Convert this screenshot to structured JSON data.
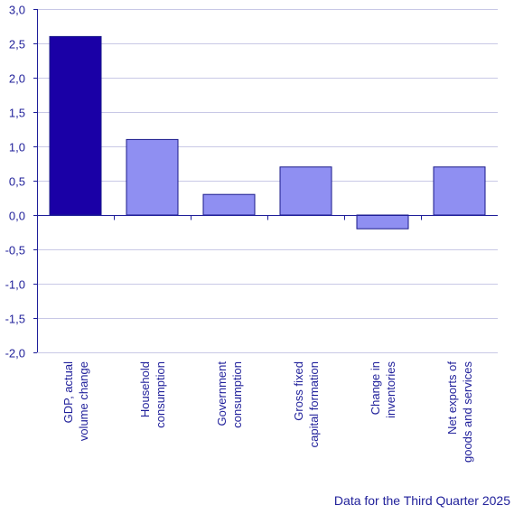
{
  "chart_data": {
    "type": "bar",
    "categories": [
      [
        "GDP, actual",
        "volume change"
      ],
      [
        "Household",
        "consumption"
      ],
      [
        "Government",
        "consumption"
      ],
      [
        "Gross fixed",
        "capital formation"
      ],
      [
        "Change in",
        "inventories"
      ],
      [
        "Net exports of",
        "goods and services"
      ]
    ],
    "values": [
      2.6,
      1.1,
      0.3,
      0.7,
      -0.2,
      0.7
    ],
    "ylim": [
      -2.0,
      3.0
    ],
    "yticks": [
      "3,0",
      "2,5",
      "2,0",
      "1,5",
      "1,0",
      "0,5",
      "0,0",
      "-0,5",
      "-1,0",
      "-1,5",
      "-2,0"
    ],
    "ytick_values": [
      3.0,
      2.5,
      2.0,
      1.5,
      1.0,
      0.5,
      0.0,
      -0.5,
      -1.0,
      -1.5,
      -2.0
    ],
    "grid": true,
    "title": "",
    "xlabel": "",
    "ylabel": "",
    "colors": {
      "highlight": "#1a00a6",
      "bar": "#8f8ff2",
      "bar_border": "#1a1a8a",
      "grid": "#c8c8e6",
      "axis": "#1f1f9a",
      "text": "#1f1f9a"
    }
  },
  "footnote": "Data for the Third Quarter 2025"
}
